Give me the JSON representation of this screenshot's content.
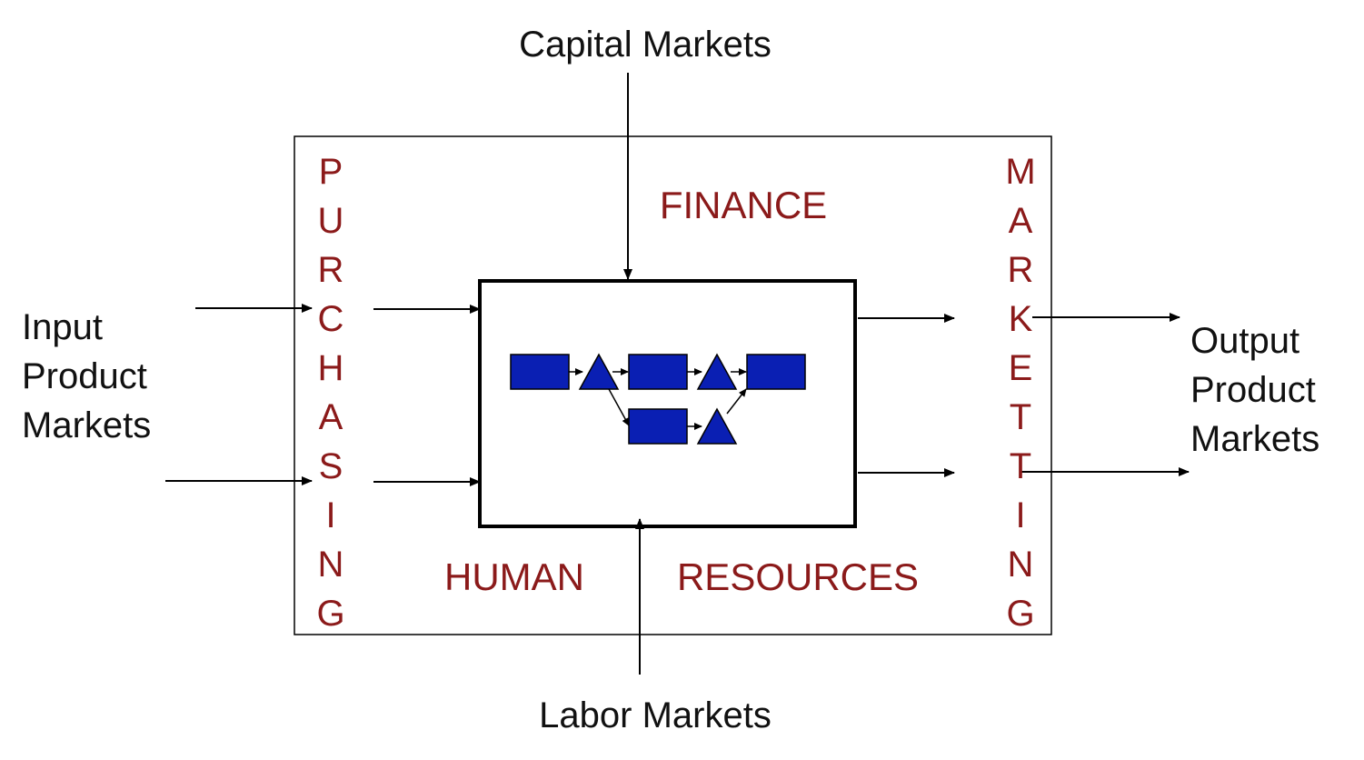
{
  "external": {
    "capital_markets": "Capital Markets",
    "labor_markets": "Labor Markets",
    "input_markets": [
      "Input",
      "Product",
      "Markets"
    ],
    "output_markets": [
      "Output",
      "Product",
      "Markets"
    ]
  },
  "functions": {
    "finance": "FINANCE",
    "human": "HUMAN",
    "resources": "RESOURCES",
    "purchasing": [
      "P",
      "U",
      "R",
      "C",
      "H",
      "A",
      "S",
      "I",
      "N",
      "G"
    ],
    "marketing": [
      "M",
      "A",
      "R",
      "K",
      "E",
      "T",
      "T",
      "I",
      "N",
      "G"
    ]
  },
  "colors": {
    "function_text": "#8b1a1a",
    "process_fill": "#0a1fb3"
  }
}
